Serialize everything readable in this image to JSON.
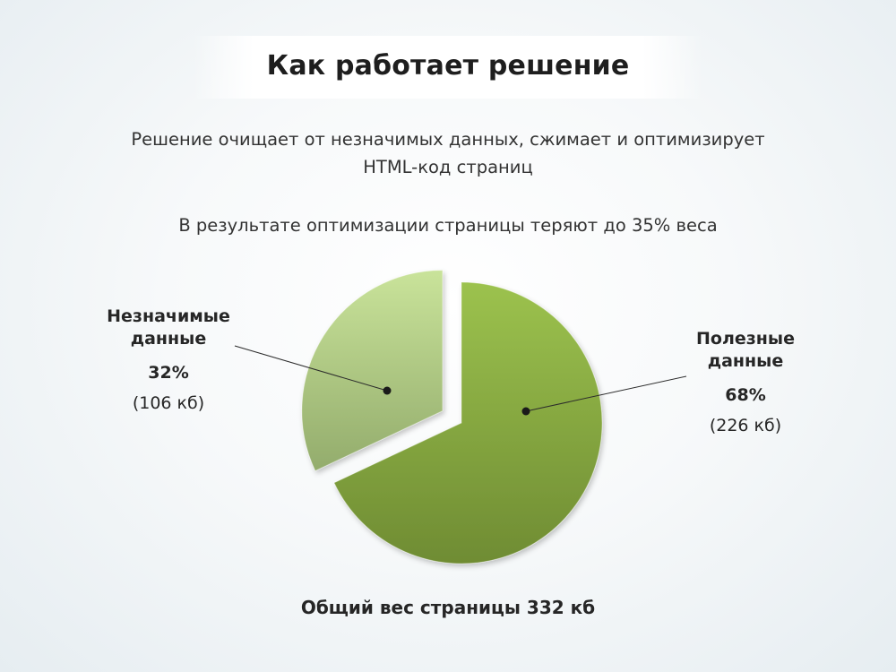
{
  "page": {
    "title": "Как работает решение",
    "subtitle_line1": "Решение очищает от незначимых данных, сжимает и оптимизирует",
    "subtitle_line2": "HTML-код страниц",
    "subtitle_line3": "В результате оптимизации страницы теряют до 35% веса",
    "footer": "Общий вес страницы 332 кб"
  },
  "chart_data": {
    "type": "pie",
    "categories": [
      "Незначимые данные",
      "Полезные данные"
    ],
    "values": [
      32,
      68
    ],
    "sizes_kb": [
      106,
      226
    ],
    "total_kb": 332,
    "colors": [
      "#b2cd82",
      "#88aa43"
    ],
    "exploded": "Незначимые данные",
    "labels": [
      {
        "name_line1": "Незначимые",
        "name_line2": "данные",
        "percent": "32%",
        "size": "(106 кб)"
      },
      {
        "name_line1": "Полезные",
        "name_line2": "данные",
        "percent": "68%",
        "size": "(226 кб)"
      }
    ]
  }
}
